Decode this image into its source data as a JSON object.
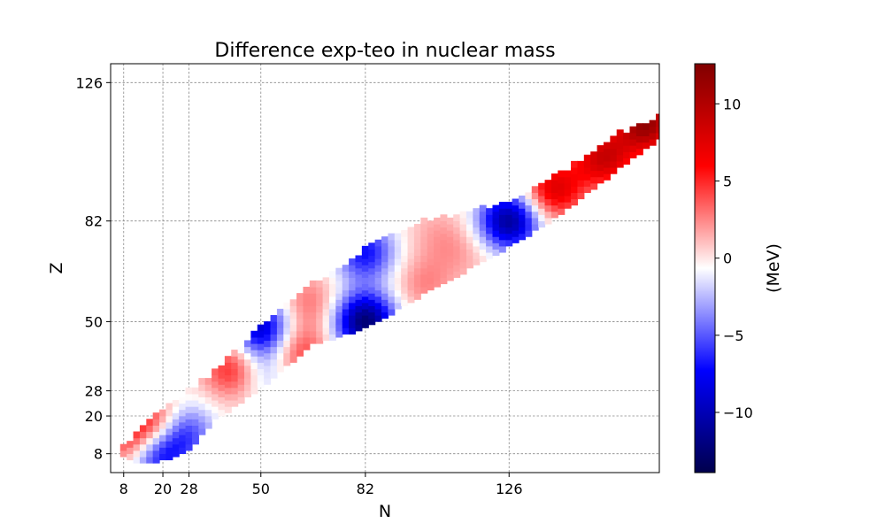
{
  "chart_data": {
    "type": "heatmap",
    "title": "Difference exp-teo in nuclear mass",
    "xlabel": "N",
    "ylabel": "Z",
    "xlim": [
      4,
      172
    ],
    "ylim": [
      2,
      132
    ],
    "xticks": [
      8,
      20,
      28,
      50,
      82,
      126
    ],
    "yticks": [
      8,
      20,
      28,
      50,
      82,
      126
    ],
    "grid": true,
    "colorbar": {
      "label": "(MeV)",
      "range": [
        -13.9,
        12.6
      ],
      "ticks": [
        -10,
        -5,
        0,
        5,
        10
      ],
      "tick_labels": [
        "−10",
        "−5",
        "0",
        "5",
        "10"
      ],
      "colormap": "seismic",
      "colors": [
        "#00004c",
        "#0000ff",
        "#ffffff",
        "#ff0000",
        "#800000"
      ]
    },
    "band": {
      "lower_edge_NZ": [
        [
          8,
          8
        ],
        [
          14,
          6
        ],
        [
          20,
          7
        ],
        [
          28,
          10
        ],
        [
          36,
          20
        ],
        [
          50,
          30
        ],
        [
          66,
          44
        ],
        [
          82,
          49
        ],
        [
          100,
          60
        ],
        [
          126,
          75
        ],
        [
          140,
          84
        ],
        [
          160,
          100
        ],
        [
          172,
          109
        ]
      ],
      "upper_edge_NZ": [
        [
          8,
          10
        ],
        [
          14,
          16
        ],
        [
          20,
          22
        ],
        [
          28,
          28
        ],
        [
          38,
          36
        ],
        [
          50,
          49
        ],
        [
          66,
          62
        ],
        [
          82,
          73
        ],
        [
          100,
          82
        ],
        [
          126,
          88
        ],
        [
          140,
          96
        ],
        [
          160,
          110
        ],
        [
          172,
          115
        ]
      ]
    },
    "hotspots": [
      {
        "N": 82,
        "Z": 50,
        "value": -12.5
      },
      {
        "N": 126,
        "Z": 82,
        "value": -11.0
      },
      {
        "N": 50,
        "Z": 48,
        "value": -9.0
      },
      {
        "N": 82,
        "Z": 72,
        "value": -7.0
      },
      {
        "N": 50,
        "Z": 34,
        "value": -3.5
      },
      {
        "N": 18,
        "Z": 8,
        "value": -8.0
      },
      {
        "N": 26,
        "Z": 15,
        "value": -6.5
      },
      {
        "N": 42,
        "Z": 35,
        "value": 6.0
      },
      {
        "N": 62,
        "Z": 40,
        "value": 4.5
      },
      {
        "N": 18,
        "Z": 17,
        "value": 6.5
      },
      {
        "N": 10,
        "Z": 12,
        "value": 5.0
      },
      {
        "N": 100,
        "Z": 62,
        "value": 2.5
      },
      {
        "N": 65,
        "Z": 56,
        "value": 3.0
      },
      {
        "N": 104,
        "Z": 78,
        "value": 1.5
      },
      {
        "N": 112,
        "Z": 72,
        "value": 1.5
      },
      {
        "N": 140,
        "Z": 92,
        "value": 7.5
      },
      {
        "N": 155,
        "Z": 102,
        "value": 8.5
      },
      {
        "N": 168,
        "Z": 113,
        "value": 11.5
      }
    ]
  }
}
